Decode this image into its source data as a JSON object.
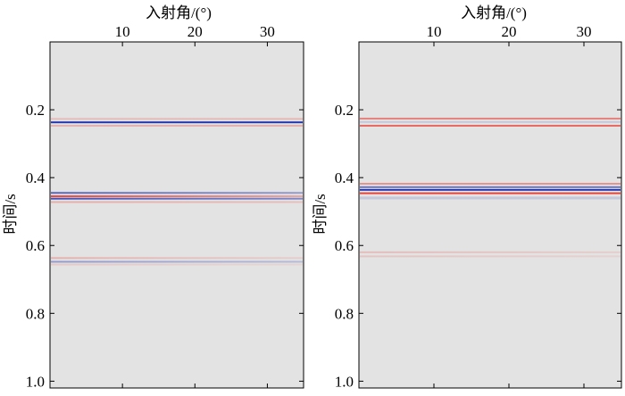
{
  "figure": {
    "background": "#e3e3e3",
    "positive_color": "#e8342b",
    "negative_color": "#1a2fae"
  },
  "chart_data": [
    {
      "type": "heatmap",
      "xlabel": "入射角/(°)",
      "ylabel": "时间/s",
      "xlim": [
        0,
        35
      ],
      "ylim": [
        0,
        1.02
      ],
      "x_ticks": [
        10,
        20,
        30
      ],
      "y_ticks": [
        0.2,
        0.4,
        0.6,
        0.8,
        1.0
      ],
      "x_tick_labels": [
        "10",
        "20",
        "30"
      ],
      "y_tick_labels": [
        "0.2",
        "0.4",
        "0.6",
        "0.8",
        "1.0"
      ],
      "x_axis_position": "top",
      "y_axis_reversed": true,
      "events": [
        {
          "time": 0.227,
          "amp_start": 0.2,
          "amp_end": 0.22,
          "sign": 1,
          "width": 0.006
        },
        {
          "time": 0.237,
          "amp_start": 0.95,
          "amp_end": 0.95,
          "sign": -1,
          "width": 0.005
        },
        {
          "time": 0.247,
          "amp_start": 0.28,
          "amp_end": 0.3,
          "sign": 1,
          "width": 0.005
        },
        {
          "time": 0.445,
          "amp_start": 0.7,
          "amp_end": 0.4,
          "sign": -1,
          "width": 0.004
        },
        {
          "time": 0.455,
          "amp_start": 0.9,
          "amp_end": 0.35,
          "sign": 1,
          "width": 0.005
        },
        {
          "time": 0.462,
          "amp_start": 0.8,
          "amp_end": 0.5,
          "sign": -1,
          "width": 0.004
        },
        {
          "time": 0.472,
          "amp_start": 0.3,
          "amp_end": 0.2,
          "sign": 1,
          "width": 0.004
        },
        {
          "time": 0.637,
          "amp_start": 0.28,
          "amp_end": 0.12,
          "sign": 1,
          "width": 0.004
        },
        {
          "time": 0.648,
          "amp_start": 0.4,
          "amp_end": 0.22,
          "sign": -1,
          "width": 0.004
        },
        {
          "time": 0.656,
          "amp_start": 0.15,
          "amp_end": 0.08,
          "sign": 1,
          "width": 0.004
        }
      ]
    },
    {
      "type": "heatmap",
      "xlabel": "入射角/(°)",
      "ylabel": "时间/s",
      "xlim": [
        0,
        35
      ],
      "ylim": [
        0,
        1.02
      ],
      "x_ticks": [
        10,
        20,
        30
      ],
      "y_ticks": [
        0.2,
        0.4,
        0.6,
        0.8,
        1.0
      ],
      "x_tick_labels": [
        "10",
        "20",
        "30"
      ],
      "y_tick_labels": [
        "0.2",
        "0.4",
        "0.6",
        "0.8",
        "1.0"
      ],
      "x_axis_position": "top",
      "y_axis_reversed": true,
      "events": [
        {
          "time": 0.226,
          "amp_start": 0.55,
          "amp_end": 0.55,
          "sign": 1,
          "width": 0.005
        },
        {
          "time": 0.236,
          "amp_start": 0.15,
          "amp_end": 0.15,
          "sign": -1,
          "width": 0.004
        },
        {
          "time": 0.247,
          "amp_start": 0.7,
          "amp_end": 0.7,
          "sign": 1,
          "width": 0.005
        },
        {
          "time": 0.418,
          "amp_start": 0.45,
          "amp_end": 0.45,
          "sign": 1,
          "width": 0.005
        },
        {
          "time": 0.428,
          "amp_start": 0.6,
          "amp_end": 0.6,
          "sign": -1,
          "width": 0.004
        },
        {
          "time": 0.436,
          "amp_start": 0.95,
          "amp_end": 0.95,
          "sign": -1,
          "width": 0.005
        },
        {
          "time": 0.446,
          "amp_start": 0.9,
          "amp_end": 0.9,
          "sign": 1,
          "width": 0.005
        },
        {
          "time": 0.46,
          "amp_start": 0.15,
          "amp_end": 0.15,
          "sign": -1,
          "width": 0.008
        },
        {
          "time": 0.62,
          "amp_start": 0.22,
          "amp_end": 0.12,
          "sign": 1,
          "width": 0.004
        },
        {
          "time": 0.632,
          "amp_start": 0.18,
          "amp_end": 0.1,
          "sign": 1,
          "width": 0.004
        }
      ]
    }
  ]
}
